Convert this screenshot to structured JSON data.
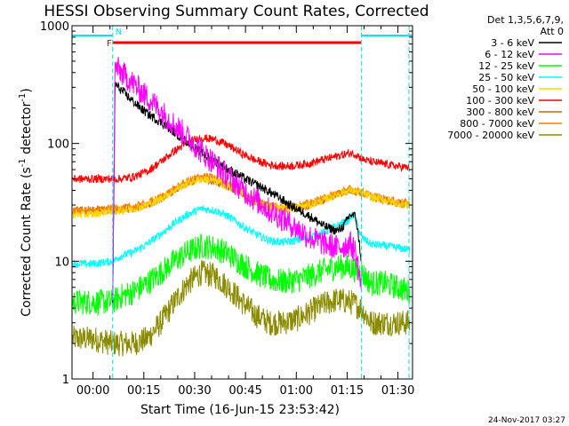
{
  "chart_data": {
    "type": "line",
    "title": "HESSI Observing Summary Count Rates, Corrected",
    "xlabel": "Start Time (16-Jun-15 23:53:42)",
    "ylabel_parts": {
      "pre": "Corrected Count Rate (s",
      "sup1": "-1",
      "mid": " detector",
      "sup2": "-1",
      "post": ")"
    },
    "yscale": "log",
    "xlim_minutes": [
      -6.2,
      94.3
    ],
    "ylim": [
      1,
      1000
    ],
    "x_ticks": [
      {
        "label": "00:00",
        "value": 0
      },
      {
        "label": "00:15",
        "value": 15
      },
      {
        "label": "00:30",
        "value": 30
      },
      {
        "label": "00:45",
        "value": 45
      },
      {
        "label": "01:00",
        "value": 60
      },
      {
        "label": "01:15",
        "value": 75
      },
      {
        "label": "01:30",
        "value": 90
      }
    ],
    "y_ticks": [
      {
        "label": "1",
        "value": 1
      },
      {
        "label": "10",
        "value": 10
      },
      {
        "label": "100",
        "value": 100
      },
      {
        "label": "1000",
        "value": 1000
      }
    ],
    "legend_header": [
      "Det 1,3,5,6,7,9,",
      "Att 0"
    ],
    "legend_placement": "right",
    "footer_date": "24-Nov-2017 03:27",
    "flags": [
      {
        "label": "F",
        "color": "#ff0000",
        "start": 5.8,
        "end": 79.2,
        "kind": "flare"
      },
      {
        "label": "N",
        "color": "#00e5ee",
        "start": -6.2,
        "end": 5.8,
        "kind": "night"
      },
      {
        "label": "",
        "color": "#00e5ee",
        "start": 79.2,
        "end": 94.3,
        "kind": "night"
      }
    ],
    "night_boundaries": [
      5.8,
      79.2
    ],
    "series": [
      {
        "name": "3 - 6 keV",
        "color": "#000000",
        "points": [
          [
            5.8,
            4
          ],
          [
            6.5,
            320
          ],
          [
            8,
            290
          ],
          [
            10,
            255
          ],
          [
            12,
            225
          ],
          [
            14,
            200
          ],
          [
            16,
            180
          ],
          [
            18,
            165
          ],
          [
            20,
            152
          ],
          [
            22,
            138
          ],
          [
            24,
            125
          ],
          [
            26,
            112
          ],
          [
            28,
            102
          ],
          [
            30,
            92
          ],
          [
            32,
            84
          ],
          [
            34,
            76
          ],
          [
            36,
            70
          ],
          [
            38,
            65
          ],
          [
            40,
            60
          ],
          [
            42,
            56
          ],
          [
            44,
            52
          ],
          [
            46,
            48
          ],
          [
            48,
            45
          ],
          [
            50,
            42
          ],
          [
            52,
            39
          ],
          [
            54,
            36
          ],
          [
            56,
            33
          ],
          [
            58,
            30
          ],
          [
            60,
            28
          ],
          [
            62,
            26
          ],
          [
            64,
            24
          ],
          [
            66,
            22
          ],
          [
            68,
            20
          ],
          [
            70,
            19
          ],
          [
            72,
            18
          ],
          [
            74,
            20
          ],
          [
            76,
            25
          ],
          [
            77.5,
            24
          ],
          [
            78.5,
            15
          ],
          [
            79.2,
            10
          ]
        ]
      },
      {
        "name": "6 - 12 keV",
        "color": "#ff00ff",
        "points": [
          [
            5.8,
            4
          ],
          [
            6.5,
            450
          ],
          [
            8,
            410
          ],
          [
            10,
            360
          ],
          [
            12,
            320
          ],
          [
            14,
            280
          ],
          [
            16,
            248
          ],
          [
            18,
            218
          ],
          [
            20,
            190
          ],
          [
            22,
            165
          ],
          [
            24,
            145
          ],
          [
            26,
            128
          ],
          [
            28,
            112
          ],
          [
            30,
            98
          ],
          [
            32,
            86
          ],
          [
            34,
            76
          ],
          [
            36,
            67
          ],
          [
            38,
            59
          ],
          [
            40,
            52
          ],
          [
            42,
            46
          ],
          [
            44,
            41
          ],
          [
            46,
            37
          ],
          [
            48,
            33
          ],
          [
            50,
            30
          ],
          [
            52,
            27
          ],
          [
            54,
            25
          ],
          [
            56,
            23
          ],
          [
            58,
            21
          ],
          [
            60,
            19
          ],
          [
            62,
            17.5
          ],
          [
            64,
            16
          ],
          [
            66,
            15
          ],
          [
            68,
            14.2
          ],
          [
            70,
            13.5
          ],
          [
            72,
            13
          ],
          [
            74,
            13.5
          ],
          [
            76,
            14
          ],
          [
            77.5,
            12
          ],
          [
            78.5,
            8
          ],
          [
            79.2,
            6
          ]
        ]
      },
      {
        "name": "12 - 25 keV",
        "color": "#00ff00",
        "points": [
          [
            -6,
            4.5
          ],
          [
            0,
            4.5
          ],
          [
            5.8,
            4.5
          ],
          [
            8,
            5
          ],
          [
            12,
            5.5
          ],
          [
            16,
            6.5
          ],
          [
            20,
            8
          ],
          [
            24,
            10
          ],
          [
            28,
            12
          ],
          [
            32,
            13.5
          ],
          [
            36,
            13
          ],
          [
            40,
            11.5
          ],
          [
            44,
            9.5
          ],
          [
            48,
            8
          ],
          [
            52,
            7
          ],
          [
            56,
            6.7
          ],
          [
            60,
            6.9
          ],
          [
            64,
            7.5
          ],
          [
            68,
            8.3
          ],
          [
            72,
            9
          ],
          [
            76,
            8.8
          ],
          [
            79.2,
            8
          ],
          [
            82,
            6.5
          ],
          [
            86,
            6.5
          ],
          [
            90,
            6
          ],
          [
            93.5,
            5.5
          ]
        ]
      },
      {
        "name": "25 - 50 keV",
        "color": "#00ffff",
        "points": [
          [
            -6,
            9.5
          ],
          [
            0,
            9.5
          ],
          [
            5.8,
            10
          ],
          [
            8,
            11
          ],
          [
            12,
            12
          ],
          [
            16,
            14
          ],
          [
            20,
            17
          ],
          [
            24,
            21
          ],
          [
            28,
            25
          ],
          [
            32,
            28
          ],
          [
            36,
            27
          ],
          [
            40,
            24
          ],
          [
            44,
            20
          ],
          [
            48,
            17
          ],
          [
            52,
            15
          ],
          [
            56,
            14.5
          ],
          [
            60,
            15
          ],
          [
            64,
            16
          ],
          [
            68,
            17.5
          ],
          [
            72,
            20
          ],
          [
            75,
            22
          ],
          [
            77,
            25
          ],
          [
            79.2,
            16
          ],
          [
            82,
            14
          ],
          [
            86,
            13.5
          ],
          [
            90,
            13
          ],
          [
            93.5,
            12.5
          ]
        ]
      },
      {
        "name": "50 - 100 keV",
        "color": "#ffd700",
        "points": [
          [
            -6,
            25
          ],
          [
            0,
            25
          ],
          [
            5.8,
            27
          ],
          [
            8,
            27
          ],
          [
            12,
            28
          ],
          [
            16,
            30
          ],
          [
            20,
            34
          ],
          [
            24,
            40
          ],
          [
            28,
            46
          ],
          [
            32,
            50
          ],
          [
            36,
            48
          ],
          [
            40,
            43
          ],
          [
            44,
            37
          ],
          [
            48,
            32
          ],
          [
            52,
            29
          ],
          [
            56,
            28
          ],
          [
            60,
            28.5
          ],
          [
            64,
            30
          ],
          [
            68,
            33
          ],
          [
            72,
            37
          ],
          [
            76,
            40
          ],
          [
            79.2,
            38
          ],
          [
            82,
            35
          ],
          [
            86,
            33
          ],
          [
            90,
            31
          ],
          [
            93.5,
            30
          ]
        ]
      },
      {
        "name": "100 - 300 keV",
        "color": "#ff0000",
        "points": [
          [
            -6,
            50
          ],
          [
            0,
            50
          ],
          [
            5.8,
            50
          ],
          [
            8,
            50
          ],
          [
            12,
            52
          ],
          [
            16,
            58
          ],
          [
            20,
            70
          ],
          [
            24,
            86
          ],
          [
            28,
            102
          ],
          [
            32,
            112
          ],
          [
            36,
            108
          ],
          [
            40,
            96
          ],
          [
            44,
            82
          ],
          [
            48,
            72
          ],
          [
            52,
            66
          ],
          [
            56,
            64
          ],
          [
            60,
            65
          ],
          [
            64,
            68
          ],
          [
            68,
            73
          ],
          [
            72,
            78
          ],
          [
            76,
            83
          ],
          [
            78,
            80
          ],
          [
            79.2,
            74
          ],
          [
            82,
            70
          ],
          [
            86,
            67
          ],
          [
            90,
            64
          ],
          [
            93.5,
            62
          ]
        ]
      },
      {
        "name": "300 - 800 keV",
        "color": "#cd6600",
        "points": [
          [
            -6,
            27
          ],
          [
            0,
            27
          ],
          [
            5.8,
            27
          ],
          [
            8,
            27
          ],
          [
            12,
            28
          ],
          [
            16,
            30
          ],
          [
            20,
            34
          ],
          [
            24,
            40
          ],
          [
            28,
            46
          ],
          [
            32,
            50
          ],
          [
            36,
            48
          ],
          [
            40,
            43
          ],
          [
            44,
            37
          ],
          [
            48,
            32
          ],
          [
            52,
            29
          ],
          [
            56,
            28
          ],
          [
            60,
            28.5
          ],
          [
            64,
            30
          ],
          [
            68,
            33
          ],
          [
            72,
            37
          ],
          [
            76,
            40
          ],
          [
            79.2,
            38
          ],
          [
            82,
            35
          ],
          [
            86,
            33
          ],
          [
            90,
            31
          ],
          [
            93.5,
            30
          ]
        ]
      },
      {
        "name": "800 - 7000 keV",
        "color": "#ff7f00",
        "points": [
          [
            -6,
            27
          ],
          [
            0,
            27
          ],
          [
            5.8,
            28
          ],
          [
            8,
            28
          ],
          [
            12,
            29
          ],
          [
            16,
            31
          ],
          [
            20,
            35
          ],
          [
            24,
            41
          ],
          [
            28,
            48
          ],
          [
            32,
            53
          ],
          [
            36,
            51
          ],
          [
            40,
            45
          ],
          [
            44,
            39
          ],
          [
            48,
            33
          ],
          [
            52,
            30
          ],
          [
            56,
            29
          ],
          [
            60,
            29.5
          ],
          [
            64,
            31
          ],
          [
            68,
            34
          ],
          [
            72,
            38
          ],
          [
            76,
            41
          ],
          [
            79.2,
            39
          ],
          [
            82,
            36
          ],
          [
            86,
            34
          ],
          [
            90,
            32
          ],
          [
            93.5,
            31
          ]
        ]
      },
      {
        "name": "7000 - 20000 keV",
        "color": "#8b8b00",
        "points": [
          [
            -6,
            2.2
          ],
          [
            0,
            2.2
          ],
          [
            5.8,
            2
          ],
          [
            8,
            2
          ],
          [
            12,
            2
          ],
          [
            16,
            2.2
          ],
          [
            20,
            3
          ],
          [
            24,
            4.5
          ],
          [
            28,
            6.5
          ],
          [
            32,
            8
          ],
          [
            36,
            7.5
          ],
          [
            40,
            6
          ],
          [
            44,
            4.5
          ],
          [
            48,
            3.5
          ],
          [
            52,
            3
          ],
          [
            56,
            3
          ],
          [
            60,
            3.2
          ],
          [
            64,
            3.7
          ],
          [
            68,
            4.3
          ],
          [
            72,
            4.7
          ],
          [
            76,
            4.5
          ],
          [
            79.2,
            4
          ],
          [
            82,
            3
          ],
          [
            86,
            3
          ],
          [
            90,
            3
          ],
          [
            93.5,
            3
          ]
        ]
      }
    ]
  }
}
